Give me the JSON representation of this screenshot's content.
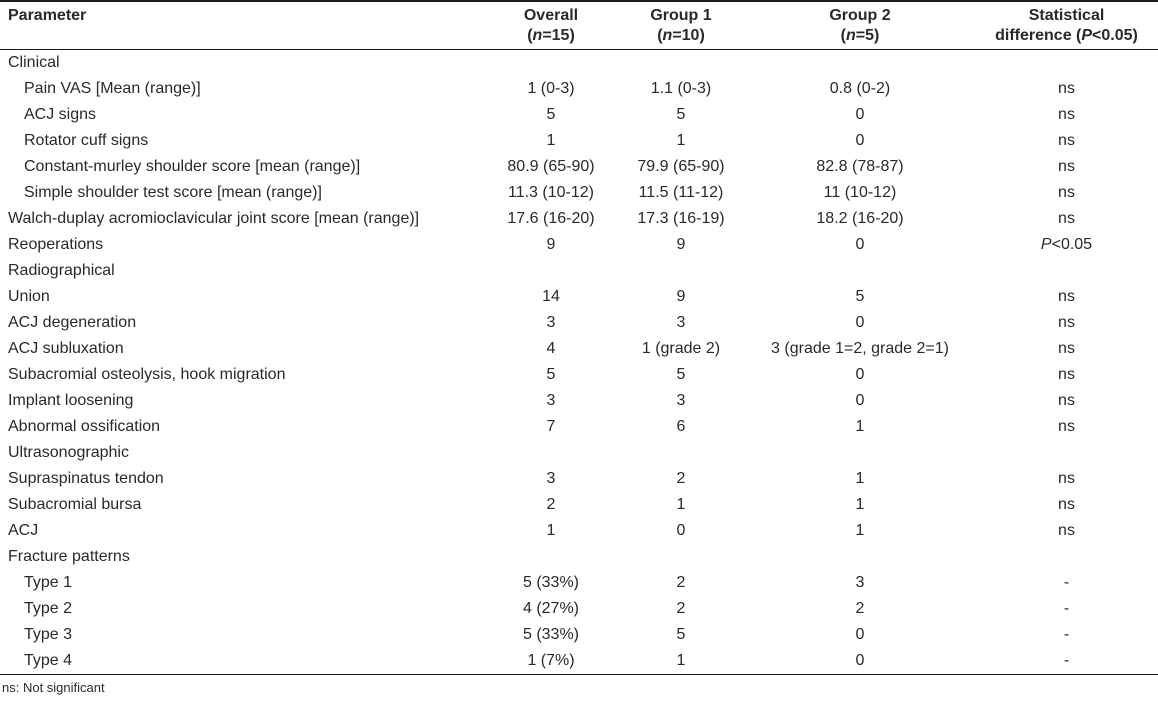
{
  "table": {
    "columns": [
      {
        "id": "parameter",
        "label": "Parameter"
      },
      {
        "id": "overall",
        "label": "Overall",
        "sub": [
          [
            "(",
            false
          ],
          [
            "n",
            true
          ],
          [
            "=15)",
            false
          ]
        ]
      },
      {
        "id": "group1",
        "label": "Group 1",
        "sub": [
          [
            "(",
            false
          ],
          [
            "n",
            true
          ],
          [
            "=10)",
            false
          ]
        ]
      },
      {
        "id": "group2",
        "label": "Group 2",
        "sub": [
          [
            "(",
            false
          ],
          [
            "n",
            true
          ],
          [
            "=5)",
            false
          ]
        ]
      },
      {
        "id": "stat",
        "label": "Statistical",
        "sub": [
          [
            "difference (",
            false
          ],
          [
            "P",
            true
          ],
          [
            "<0.05)",
            false
          ]
        ]
      }
    ],
    "rows": [
      {
        "section": "Clinical"
      },
      {
        "label": "Pain VAS [Mean (range)]",
        "indent": 1,
        "overall": "1 (0-3)",
        "group1": "1.1 (0-3)",
        "group2": "0.8 (0-2)",
        "stat": "ns"
      },
      {
        "label": "ACJ signs",
        "indent": 1,
        "overall": "5",
        "group1": "5",
        "group2": "0",
        "stat": "ns"
      },
      {
        "label": "Rotator cuff signs",
        "indent": 1,
        "overall": "1",
        "group1": "1",
        "group2": "0",
        "stat": "ns"
      },
      {
        "label": "Constant-murley shoulder score [mean (range)]",
        "indent": 1,
        "overall": "80.9 (65-90)",
        "group1": "79.9 (65-90)",
        "group2": "82.8 (78-87)",
        "stat": "ns"
      },
      {
        "label": "Simple shoulder test score [mean (range)]",
        "indent": 1,
        "overall": "11.3 (10-12)",
        "group1": "11.5 (11-12)",
        "group2": "11 (10-12)",
        "stat": "ns"
      },
      {
        "label": "Walch-duplay acromioclavicular joint score [mean (range)]",
        "indent": 0,
        "overall": "17.6 (16-20)",
        "group1": "17.3 (16-19)",
        "group2": "18.2 (16-20)",
        "stat": "ns"
      },
      {
        "label": "Reoperations",
        "indent": 0,
        "overall": "9",
        "group1": "9",
        "group2": "0",
        "stat": [
          [
            "P",
            true
          ],
          [
            "<0.05",
            false
          ]
        ]
      },
      {
        "section": "Radiographical"
      },
      {
        "label": "Union",
        "indent": 0,
        "overall": "14",
        "group1": "9",
        "group2": "5",
        "stat": "ns"
      },
      {
        "label": "ACJ degeneration",
        "indent": 0,
        "overall": "3",
        "group1": "3",
        "group2": "0",
        "stat": "ns"
      },
      {
        "label": "ACJ subluxation",
        "indent": 0,
        "overall": "4",
        "group1": "1 (grade 2)",
        "group2": "3 (grade 1=2, grade 2=1)",
        "stat": "ns"
      },
      {
        "label": "Subacromial osteolysis, hook migration",
        "indent": 0,
        "overall": "5",
        "group1": "5",
        "group2": "0",
        "stat": "ns"
      },
      {
        "label": "Implant loosening",
        "indent": 0,
        "overall": "3",
        "group1": "3",
        "group2": "0",
        "stat": "ns"
      },
      {
        "label": "Abnormal ossification",
        "indent": 0,
        "overall": "7",
        "group1": "6",
        "group2": "1",
        "stat": "ns"
      },
      {
        "section": "Ultrasonographic"
      },
      {
        "label": "Supraspinatus tendon",
        "indent": 0,
        "overall": "3",
        "group1": "2",
        "group2": "1",
        "stat": "ns"
      },
      {
        "label": "Subacromial bursa",
        "indent": 0,
        "overall": "2",
        "group1": "1",
        "group2": "1",
        "stat": "ns"
      },
      {
        "label": "ACJ",
        "indent": 0,
        "overall": "1",
        "group1": "0",
        "group2": "1",
        "stat": "ns"
      },
      {
        "section": "Fracture patterns"
      },
      {
        "label": "Type 1",
        "indent": 1,
        "overall": "5 (33%)",
        "group1": "2",
        "group2": "3",
        "stat": "-"
      },
      {
        "label": "Type 2",
        "indent": 1,
        "overall": "4 (27%)",
        "group1": "2",
        "group2": "2",
        "stat": "-"
      },
      {
        "label": "Type 3",
        "indent": 1,
        "overall": "5 (33%)",
        "group1": "5",
        "group2": "0",
        "stat": "-"
      },
      {
        "label": "Type 4",
        "indent": 1,
        "overall": "1 (7%)",
        "group1": "1",
        "group2": "0",
        "stat": "-"
      }
    ],
    "footnote": "ns: Not significant",
    "colors": {
      "text": "#27292c",
      "rule": "#1b1b1b",
      "background": "#ffffff"
    }
  }
}
